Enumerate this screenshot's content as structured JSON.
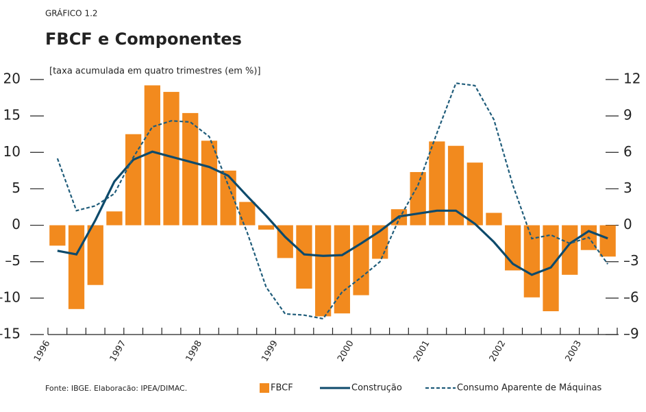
{
  "header": "GRÁFICO 1.2",
  "source": "Fonte: IBGE. Elaboracão: IPEA/DIMAC.",
  "chart_data": {
    "type": "bar",
    "title": "FBCF e Componentes",
    "subtitle": "[taxa acumulada em quatro trimestres (em %)]",
    "categories": [
      "1996",
      null,
      null,
      null,
      "1997",
      null,
      null,
      null,
      "1998",
      null,
      null,
      null,
      "1999",
      null,
      null,
      null,
      "2000",
      null,
      null,
      null,
      "2001",
      null,
      null,
      null,
      "2002",
      null,
      null,
      null,
      "2003",
      null
    ],
    "series": [
      {
        "name": "FBCF",
        "type": "bar",
        "color": "#f28a1e",
        "values": [
          -2.8,
          -11.5,
          -8.2,
          1.9,
          12.5,
          19.2,
          18.3,
          15.4,
          11.6,
          7.5,
          3.2,
          -0.6,
          -4.5,
          -8.7,
          -12.5,
          -12.1,
          -9.6,
          -4.6,
          2.2,
          7.3,
          11.5,
          10.9,
          8.6,
          1.7,
          -6.2,
          -9.9,
          -11.8,
          -6.8,
          -3.4,
          -4.3
        ]
      },
      {
        "name": "Construção",
        "type": "line",
        "color": "#0d4a6b",
        "values": [
          -3.5,
          -4.0,
          0.7,
          6.0,
          9.0,
          10.1,
          9.4,
          8.7,
          8.0,
          6.8,
          4.0,
          1.3,
          -1.6,
          -4.0,
          -4.2,
          -4.1,
          -2.5,
          -0.8,
          1.2,
          1.6,
          2.0,
          2.0,
          0.2,
          -2.3,
          -5.3,
          -6.8,
          -5.8,
          -2.5,
          -0.8,
          -1.8
        ]
      },
      {
        "name": "Consumo Aparente de Máquinas",
        "type": "line",
        "dashed": true,
        "axis": "y2",
        "color": "#1f5c7a",
        "values": [
          5.5,
          1.2,
          1.6,
          2.6,
          5.6,
          8.1,
          8.6,
          8.5,
          7.3,
          3.3,
          -0.6,
          -5.1,
          -7.3,
          -7.4,
          -7.7,
          -5.5,
          -4.3,
          -3.0,
          0.5,
          3.3,
          7.6,
          11.7,
          11.5,
          8.7,
          3.3,
          -1.1,
          -0.8,
          -1.5,
          -1.0,
          -3.2
        ]
      }
    ],
    "ylim": [
      -15,
      20
    ],
    "yticks": [
      {
        "value": -15,
        "label": "–15"
      },
      {
        "value": -10,
        "label": "–10"
      },
      {
        "value": -5,
        "label": "–5"
      },
      0,
      5,
      10,
      15,
      20
    ],
    "y2lim": [
      -9,
      12
    ],
    "y2ticks": [
      {
        "value": -9,
        "label": "–9"
      },
      {
        "value": -6,
        "label": "–6"
      },
      {
        "value": -3,
        "label": "–3"
      },
      0,
      3,
      6,
      9,
      12
    ]
  }
}
